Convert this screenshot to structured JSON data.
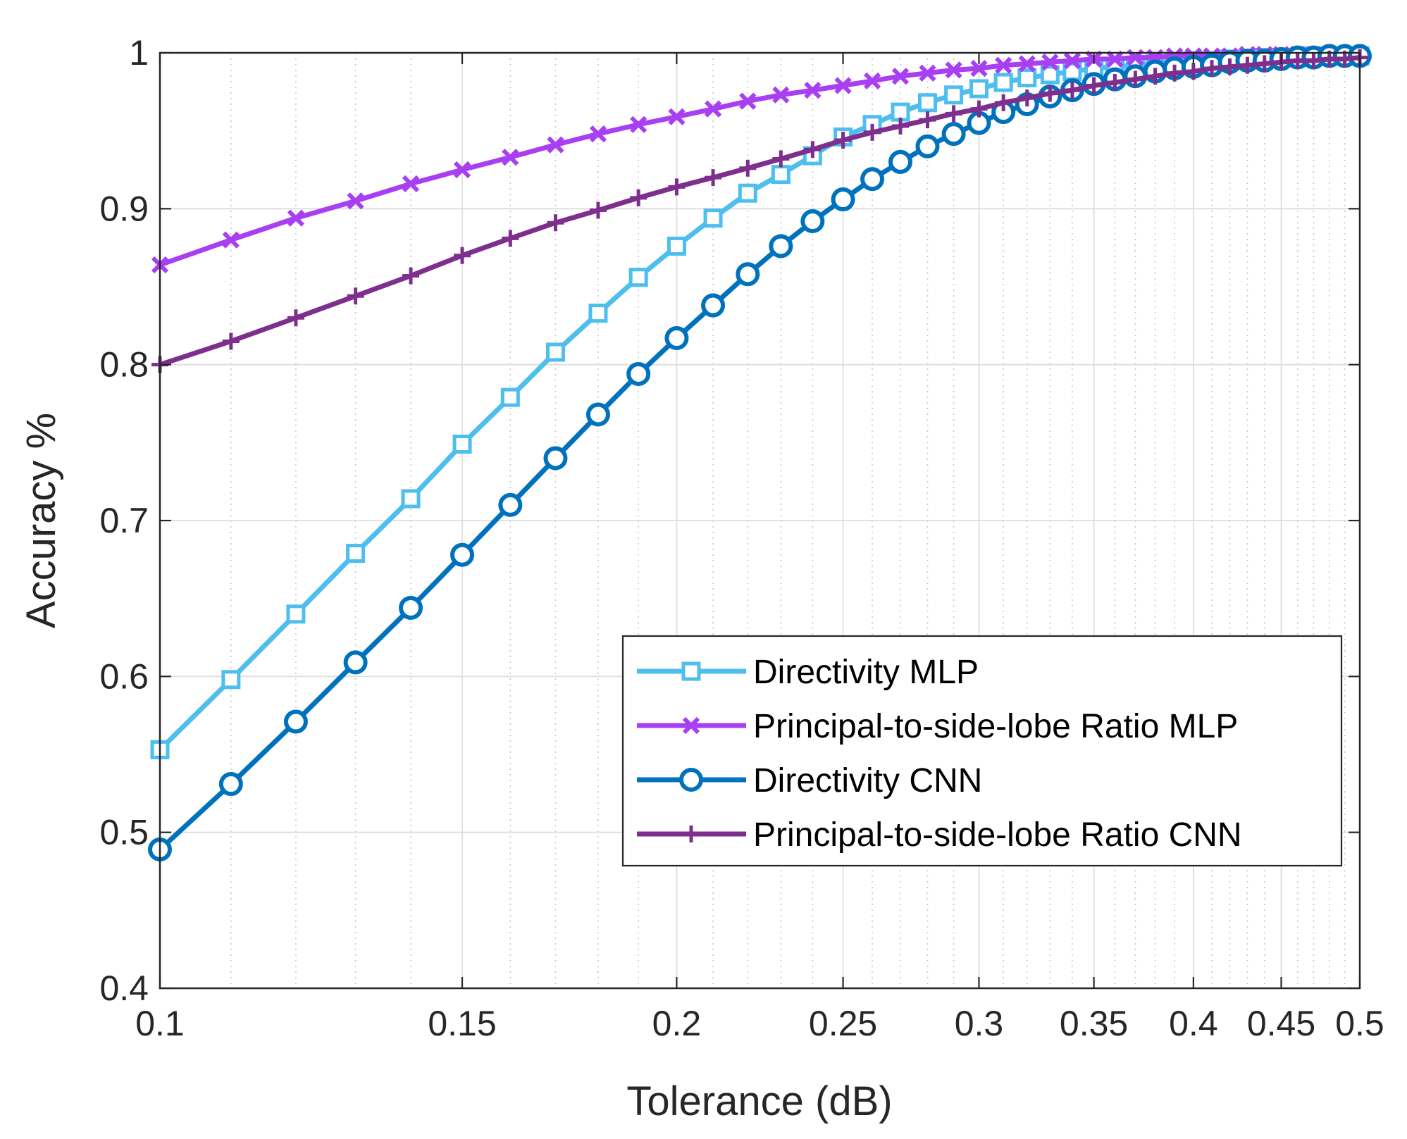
{
  "chart_data": {
    "type": "line",
    "xscale": "log",
    "title": "",
    "xlabel": "Tolerance (dB)",
    "ylabel": "Accuracy %",
    "xlim": [
      0.1,
      0.5
    ],
    "ylim": [
      0.4,
      1.0
    ],
    "grid": true,
    "minor_grid_x": true,
    "legend_position": "lower-right-inside",
    "x_ticks": [
      0.1,
      0.15,
      0.2,
      0.25,
      0.3,
      0.35,
      0.4,
      0.45,
      0.5
    ],
    "x_tick_labels": [
      "0.1",
      "0.15",
      "0.2",
      "0.25",
      "0.3",
      "0.35",
      "0.4",
      "0.45",
      "0.5"
    ],
    "y_ticks": [
      0.4,
      0.5,
      0.6,
      0.7,
      0.8,
      0.9,
      1.0
    ],
    "y_tick_labels": [
      "0.4",
      "0.5",
      "0.6",
      "0.7",
      "0.8",
      "0.9",
      "1"
    ],
    "x": [
      0.1,
      0.11,
      0.12,
      0.13,
      0.14,
      0.15,
      0.16,
      0.17,
      0.18,
      0.19,
      0.2,
      0.21,
      0.22,
      0.23,
      0.24,
      0.25,
      0.26,
      0.27,
      0.28,
      0.29,
      0.3,
      0.31,
      0.32,
      0.33,
      0.34,
      0.35,
      0.36,
      0.37,
      0.38,
      0.39,
      0.4,
      0.41,
      0.42,
      0.43,
      0.44,
      0.45,
      0.46,
      0.47,
      0.48,
      0.49,
      0.5
    ],
    "series": [
      {
        "name": "Directivity MLP",
        "color": "#4dbeee",
        "marker": "square",
        "values": [
          0.553,
          0.598,
          0.64,
          0.679,
          0.714,
          0.749,
          0.779,
          0.808,
          0.833,
          0.856,
          0.876,
          0.894,
          0.91,
          0.922,
          0.934,
          0.946,
          0.954,
          0.962,
          0.968,
          0.973,
          0.977,
          0.981,
          0.984,
          0.986,
          0.988,
          0.99,
          0.991,
          0.992,
          0.993,
          0.994,
          0.995,
          0.995,
          0.996,
          0.996,
          0.997,
          0.997,
          0.997,
          0.998,
          0.998,
          0.998,
          0.998
        ]
      },
      {
        "name": "Principal-to-side-lobe Ratio MLP",
        "color": "#a83ff2",
        "marker": "x",
        "values": [
          0.864,
          0.88,
          0.894,
          0.905,
          0.916,
          0.925,
          0.933,
          0.941,
          0.948,
          0.954,
          0.959,
          0.964,
          0.969,
          0.973,
          0.976,
          0.979,
          0.982,
          0.985,
          0.987,
          0.989,
          0.99,
          0.992,
          0.993,
          0.994,
          0.995,
          0.996,
          0.996,
          0.997,
          0.997,
          0.998,
          0.998,
          0.998,
          0.998,
          0.999,
          0.999,
          0.999,
          0.999,
          0.999,
          0.999,
          0.999,
          0.999
        ]
      },
      {
        "name": "Directivity CNN",
        "color": "#0072bd",
        "marker": "circle",
        "values": [
          0.489,
          0.531,
          0.571,
          0.609,
          0.644,
          0.678,
          0.71,
          0.74,
          0.768,
          0.794,
          0.817,
          0.838,
          0.858,
          0.876,
          0.892,
          0.906,
          0.919,
          0.93,
          0.94,
          0.948,
          0.955,
          0.962,
          0.967,
          0.972,
          0.976,
          0.98,
          0.983,
          0.985,
          0.988,
          0.99,
          0.991,
          0.992,
          0.994,
          0.995,
          0.995,
          0.996,
          0.997,
          0.997,
          0.998,
          0.998,
          0.998
        ]
      },
      {
        "name": "Principal-to-side-lobe Ratio CNN",
        "color": "#7e2f8e",
        "marker": "plus",
        "values": [
          0.8,
          0.815,
          0.83,
          0.844,
          0.857,
          0.87,
          0.881,
          0.891,
          0.899,
          0.907,
          0.914,
          0.92,
          0.926,
          0.932,
          0.938,
          0.944,
          0.949,
          0.953,
          0.957,
          0.961,
          0.964,
          0.968,
          0.971,
          0.974,
          0.976,
          0.979,
          0.981,
          0.983,
          0.985,
          0.987,
          0.988,
          0.99,
          0.991,
          0.992,
          0.993,
          0.994,
          0.995,
          0.995,
          0.996,
          0.996,
          0.997
        ]
      }
    ]
  }
}
